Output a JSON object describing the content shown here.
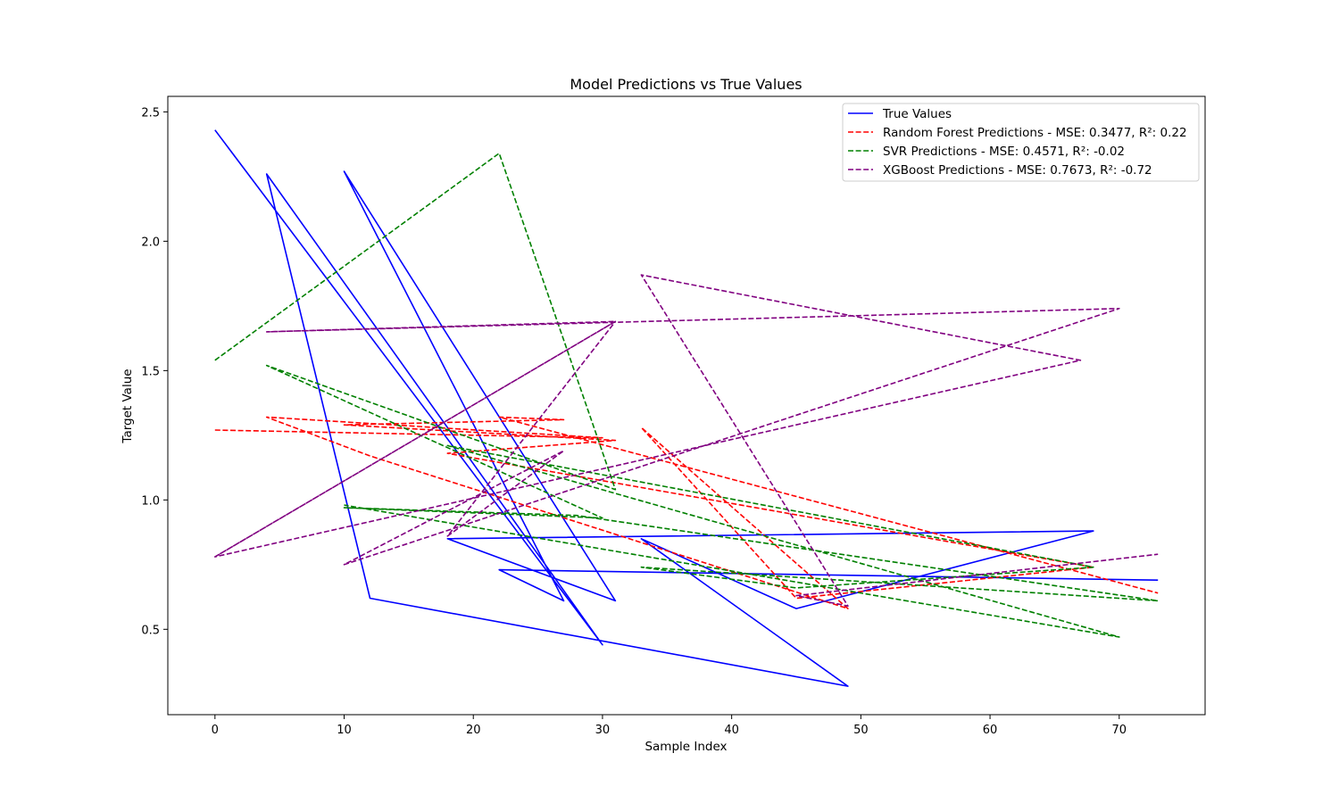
{
  "chart_data": {
    "type": "line",
    "title": "Model Predictions vs True Values",
    "xlabel": "Sample Index",
    "ylabel": "Target Value",
    "xlim": [
      -3.65,
      76.65
    ],
    "ylim": [
      0.17,
      2.56
    ],
    "xticks": [
      0,
      10,
      20,
      30,
      40,
      50,
      60,
      70
    ],
    "yticks": [
      0.5,
      1.0,
      1.5,
      2.0,
      2.5
    ],
    "ytick_labels": [
      "0.5",
      "1.0",
      "1.5",
      "2.0",
      "2.5"
    ],
    "grid": false,
    "legend_position": "top-right",
    "series": [
      {
        "name": "True Values",
        "color": "#0000ff",
        "dash": "solid",
        "x": [
          0,
          30,
          4,
          12,
          49,
          33,
          45,
          68,
          18,
          31,
          10,
          27,
          22,
          73
        ],
        "y": [
          2.43,
          0.44,
          2.26,
          0.62,
          0.28,
          0.85,
          0.58,
          0.88,
          0.85,
          0.61,
          2.27,
          0.61,
          0.73,
          0.69
        ]
      },
      {
        "name": "Random Forest Predictions - MSE: 0.3477, R²: 0.22",
        "color": "#ff0000",
        "dash": "dashed",
        "x": [
          0,
          30,
          4,
          12,
          49,
          33,
          45,
          68,
          18,
          31,
          10,
          27,
          22,
          73
        ],
        "y": [
          1.27,
          1.24,
          1.32,
          1.17,
          0.58,
          1.28,
          0.62,
          0.74,
          1.18,
          1.23,
          1.29,
          1.31,
          1.32,
          0.64
        ]
      },
      {
        "name": "SVR Predictions - MSE: 0.4571, R²: -0.02",
        "color": "#008000",
        "dash": "dashed",
        "x": [
          0,
          22,
          31,
          4,
          30,
          10,
          28,
          73,
          33,
          45,
          68,
          18,
          70,
          10
        ],
        "y": [
          1.54,
          2.34,
          1.04,
          1.52,
          0.93,
          0.97,
          0.94,
          0.61,
          0.74,
          0.66,
          0.74,
          1.21,
          0.47,
          0.98
        ]
      },
      {
        "name": "XGBoost Predictions - MSE: 0.7673, R²: -0.72",
        "color": "#800080",
        "dash": "dashed",
        "x": [
          0,
          31,
          18,
          27,
          10,
          70,
          4,
          31,
          0,
          67,
          33,
          49,
          45,
          73
        ],
        "y": [
          0.78,
          1.69,
          0.86,
          1.19,
          0.75,
          1.74,
          1.65,
          1.69,
          0.78,
          1.54,
          1.87,
          0.59,
          0.63,
          0.79
        ]
      }
    ]
  }
}
